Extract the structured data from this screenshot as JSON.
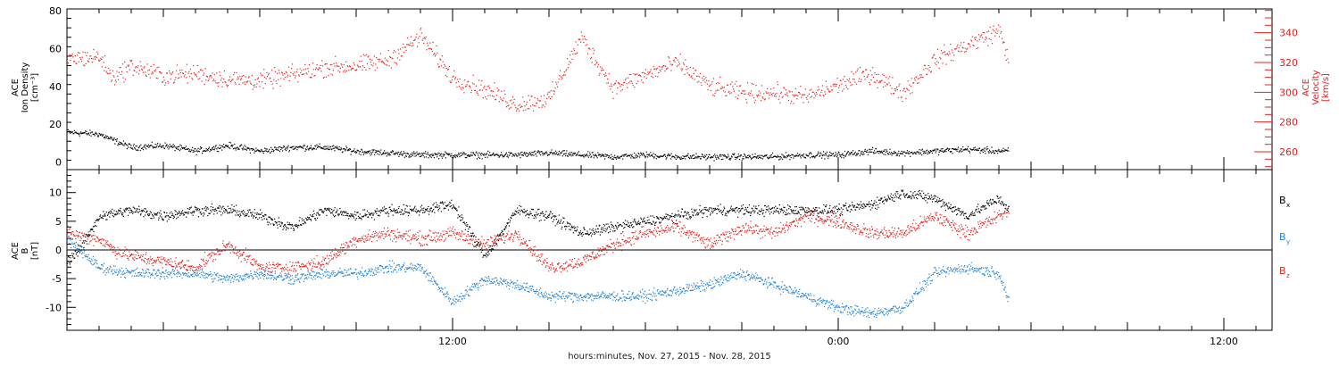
{
  "chart_data": [
    {
      "panel": "top",
      "type": "scatter",
      "xlabel": "hours:minutes, Nov. 27, 2015 - Nov. 28, 2015",
      "x_tick_labels": [
        "12:00",
        "0:00",
        "12:00"
      ],
      "x_tick_hours": [
        12,
        24,
        36
      ],
      "x_range_hours": [
        0,
        37.5
      ],
      "data_end_hour": 29.3,
      "left_axis": {
        "label_lines": [
          "ACE",
          "Ion Density",
          "[cm⁻³]"
        ],
        "ylim": [
          -4,
          81
        ],
        "ticks": [
          0,
          20,
          40,
          60,
          80
        ],
        "color": "#000000"
      },
      "right_axis": {
        "label_lines": [
          "ACE",
          "Velocity",
          "[km/s]"
        ],
        "ylim": [
          248,
          356
        ],
        "ticks": [
          260,
          280,
          300,
          320,
          340
        ],
        "color": "#e8201c"
      },
      "series": [
        {
          "name": "Ion Density",
          "axis": "left",
          "color": "#000000",
          "points": [
            [
              0,
              16
            ],
            [
              1,
              15
            ],
            [
              1.4,
              12
            ],
            [
              2,
              8
            ],
            [
              3,
              9
            ],
            [
              4,
              6
            ],
            [
              5,
              9
            ],
            [
              6,
              6
            ],
            [
              7,
              8
            ],
            [
              8,
              8
            ],
            [
              9,
              6
            ],
            [
              10,
              5
            ],
            [
              11,
              4
            ],
            [
              12,
              4
            ],
            [
              13,
              4
            ],
            [
              14,
              4
            ],
            [
              15,
              5
            ],
            [
              16,
              4
            ],
            [
              17,
              3
            ],
            [
              18,
              4
            ],
            [
              19,
              3
            ],
            [
              20,
              3
            ],
            [
              21,
              3
            ],
            [
              22,
              3
            ],
            [
              23,
              4
            ],
            [
              24,
              4
            ],
            [
              25,
              6
            ],
            [
              26,
              5
            ],
            [
              27,
              6
            ],
            [
              28,
              7
            ],
            [
              29,
              6
            ],
            [
              29.3,
              6
            ]
          ]
        },
        {
          "name": "Velocity",
          "axis": "right",
          "color": "#e8201c",
          "points": [
            [
              0,
              323
            ],
            [
              1,
              324
            ],
            [
              1.4,
              310
            ],
            [
              2,
              318
            ],
            [
              3,
              311
            ],
            [
              4,
              313
            ],
            [
              5,
              309
            ],
            [
              6,
              308
            ],
            [
              7,
              312
            ],
            [
              8,
              317
            ],
            [
              9,
              318
            ],
            [
              10,
              322
            ],
            [
              11,
              338
            ],
            [
              12,
              310
            ],
            [
              13,
              302
            ],
            [
              14,
              292
            ],
            [
              15,
              296
            ],
            [
              16,
              337
            ],
            [
              17,
              303
            ],
            [
              18,
              312
            ],
            [
              19,
              320
            ],
            [
              20,
              304
            ],
            [
              21,
              300
            ],
            [
              22,
              300
            ],
            [
              23,
              297
            ],
            [
              24,
              305
            ],
            [
              25,
              313
            ],
            [
              26,
              300
            ],
            [
              27,
              322
            ],
            [
              28,
              332
            ],
            [
              29,
              342
            ],
            [
              29.3,
              322
            ]
          ]
        }
      ]
    },
    {
      "panel": "bottom",
      "type": "scatter",
      "left_axis": {
        "label_lines": [
          "ACE",
          "B",
          "[nT]"
        ],
        "ylim": [
          -14,
          14
        ],
        "ticks": [
          -10,
          -5,
          0,
          5,
          10
        ],
        "color": "#000000"
      },
      "zero_line": true,
      "legend": {
        "placement": "right",
        "entries": [
          {
            "text": "B",
            "sub": "x",
            "color": "#000000"
          },
          {
            "text": "B",
            "sub": "y",
            "color": "#1f82d9"
          },
          {
            "text": "B",
            "sub": "z",
            "color": "#e8201c"
          }
        ]
      },
      "series": [
        {
          "name": "Bx",
          "color": "#000000",
          "points": [
            [
              0,
              -2
            ],
            [
              0.5,
              1
            ],
            [
              1,
              6
            ],
            [
              2,
              7
            ],
            [
              3,
              6
            ],
            [
              4,
              7
            ],
            [
              5,
              7
            ],
            [
              6,
              6
            ],
            [
              7,
              4
            ],
            [
              8,
              7
            ],
            [
              9,
              6
            ],
            [
              10,
              7
            ],
            [
              11,
              7
            ],
            [
              12,
              8
            ],
            [
              13,
              -1
            ],
            [
              14,
              7
            ],
            [
              15,
              6
            ],
            [
              16,
              3
            ],
            [
              17,
              4
            ],
            [
              18,
              5
            ],
            [
              19,
              6
            ],
            [
              20,
              7
            ],
            [
              21,
              7
            ],
            [
              22,
              7
            ],
            [
              23,
              7
            ],
            [
              24,
              7
            ],
            [
              25,
              8
            ],
            [
              26,
              10
            ],
            [
              27,
              9
            ],
            [
              28,
              6
            ],
            [
              29,
              9
            ],
            [
              29.3,
              7
            ]
          ]
        },
        {
          "name": "By",
          "color": "#1f82d9",
          "points": [
            [
              0,
              2
            ],
            [
              1,
              -3
            ],
            [
              2,
              -4
            ],
            [
              3,
              -4
            ],
            [
              4,
              -4
            ],
            [
              5,
              -5
            ],
            [
              6,
              -4
            ],
            [
              7,
              -5
            ],
            [
              8,
              -4
            ],
            [
              9,
              -4
            ],
            [
              10,
              -3
            ],
            [
              11,
              -3
            ],
            [
              12,
              -9
            ],
            [
              13,
              -5
            ],
            [
              14,
              -6
            ],
            [
              15,
              -8
            ],
            [
              16,
              -8
            ],
            [
              17,
              -8
            ],
            [
              18,
              -8
            ],
            [
              19,
              -7
            ],
            [
              20,
              -6
            ],
            [
              21,
              -4
            ],
            [
              22,
              -6
            ],
            [
              23,
              -8
            ],
            [
              24,
              -10
            ],
            [
              25,
              -11
            ],
            [
              26,
              -10
            ],
            [
              27,
              -4
            ],
            [
              28,
              -3
            ],
            [
              29,
              -4
            ],
            [
              29.3,
              -9
            ]
          ]
        },
        {
          "name": "Bz",
          "color": "#e8201c",
          "points": [
            [
              0,
              3
            ],
            [
              1,
              2
            ],
            [
              1.5,
              0
            ],
            [
              2,
              -1
            ],
            [
              3,
              -2
            ],
            [
              4,
              -3
            ],
            [
              5,
              1
            ],
            [
              6,
              -3
            ],
            [
              7,
              -3
            ],
            [
              8,
              -2
            ],
            [
              9,
              2
            ],
            [
              10,
              3
            ],
            [
              11,
              2
            ],
            [
              12,
              3
            ],
            [
              13,
              1
            ],
            [
              14,
              3
            ],
            [
              15,
              -3
            ],
            [
              16,
              -2
            ],
            [
              17,
              1
            ],
            [
              18,
              3
            ],
            [
              19,
              4
            ],
            [
              20,
              1
            ],
            [
              21,
              4
            ],
            [
              22,
              3
            ],
            [
              23,
              6
            ],
            [
              24,
              5
            ],
            [
              25,
              3
            ],
            [
              26,
              3
            ],
            [
              27,
              6
            ],
            [
              28,
              3
            ],
            [
              29,
              6
            ],
            [
              29.3,
              7
            ]
          ]
        }
      ]
    }
  ]
}
